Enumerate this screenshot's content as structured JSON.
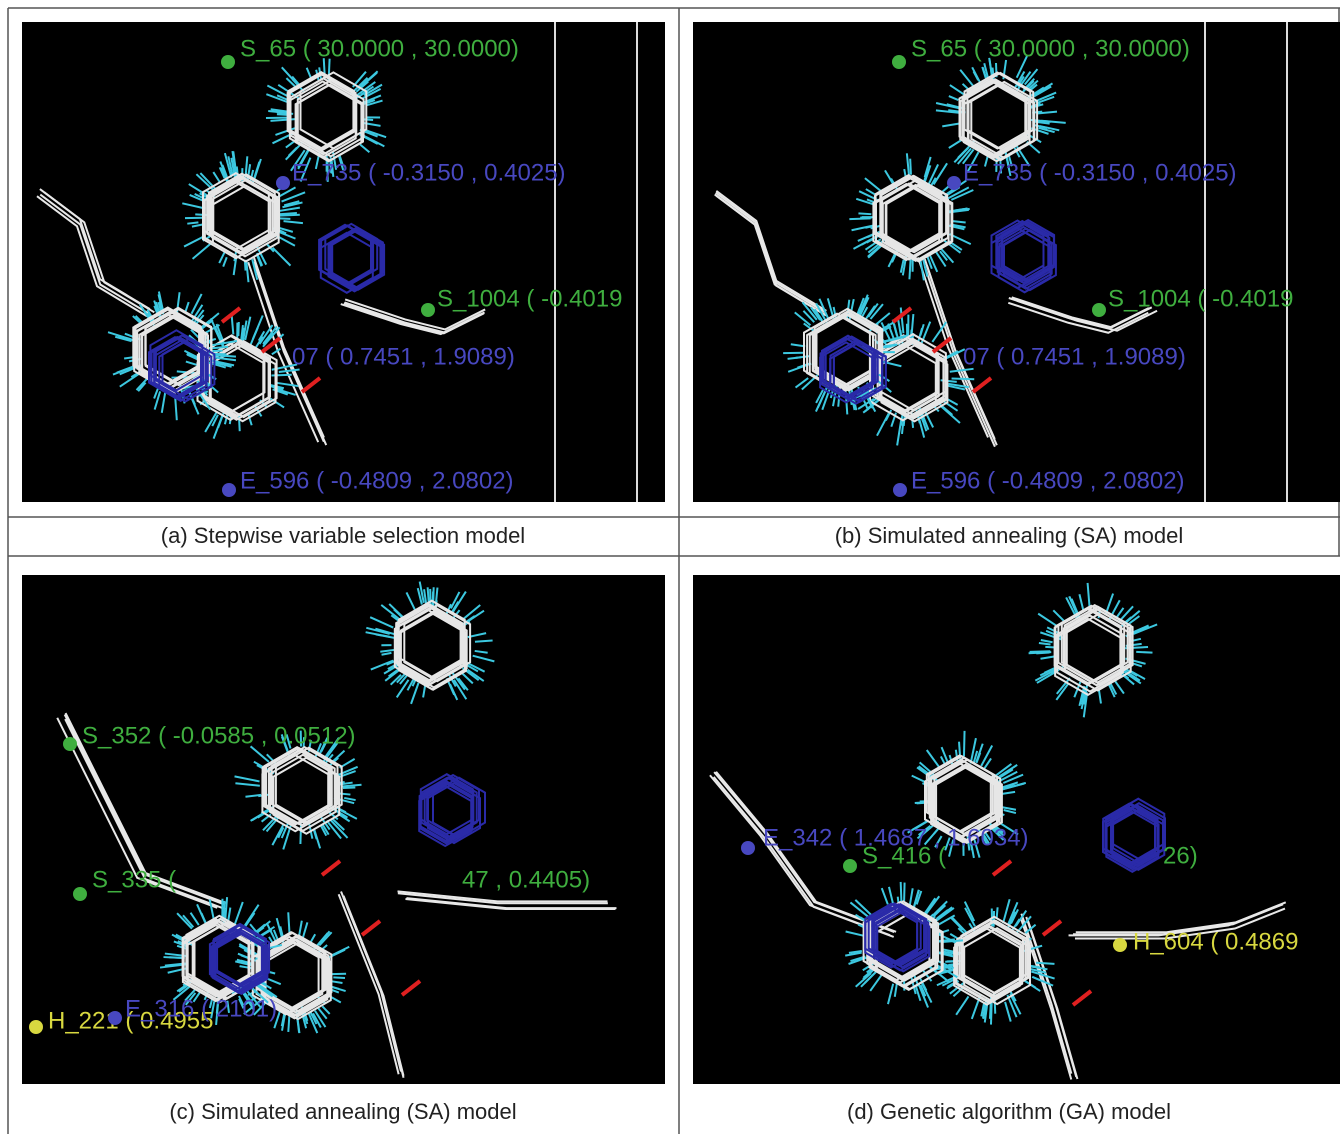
{
  "figure": {
    "panels": [
      {
        "caption": "(a) Stepwise variable selection model",
        "labels": [
          {
            "text": "S_65 ( 30.0000 , 30.0000)",
            "color": "#3fae3f"
          },
          {
            "text": "E_735 ( -0.3150 , 0.4025)",
            "color": "#4848c0"
          },
          {
            "text": "S_1004 ( -0.4019",
            "color": "#3fae3f"
          },
          {
            "text": "07 ( 0.7451 , 1.9089)",
            "color": "#4848c0"
          },
          {
            "text": "E_596 ( -0.4809 , 2.0802)",
            "color": "#4848c0"
          }
        ]
      },
      {
        "caption": "(b) Simulated annealing (SA) model",
        "labels": [
          {
            "text": "S_65 ( 30.0000 , 30.0000)",
            "color": "#3fae3f"
          },
          {
            "text": "E_735 ( -0.3150 , 0.4025)",
            "color": "#4848c0"
          },
          {
            "text": "S_1004 ( -0.4019",
            "color": "#3fae3f"
          },
          {
            "text": "07 ( 0.7451 , 1.9089)",
            "color": "#4848c0"
          },
          {
            "text": "E_596 ( -0.4809 , 2.0802)",
            "color": "#4848c0"
          }
        ]
      },
      {
        "caption": "(c) Simulated annealing (SA) model",
        "labels": [
          {
            "text": "S_352 ( -0.0585 , 0.0512)",
            "color": "#3fae3f"
          },
          {
            "text": "S_335 (",
            "color": "#3fae3f"
          },
          {
            "text": "47 , 0.4405)",
            "color": "#3fae3f"
          },
          {
            "text": "H_221 ( 0.4955",
            "color": "#d8d840"
          },
          {
            "text": "E_316 ( 2101)",
            "color": "#4848c0"
          }
        ]
      },
      {
        "caption": "(d) Genetic algorithm (GA) model",
        "labels": [
          {
            "text": "E_342 ( 1.4687 , 1.6034)",
            "color": "#4848c0"
          },
          {
            "text": "S_416 (",
            "color": "#3fae3f"
          },
          {
            "text": "26)",
            "color": "#3fae3f"
          },
          {
            "text": "H_604 ( 0.4869",
            "color": "#d8d840"
          }
        ]
      }
    ]
  }
}
